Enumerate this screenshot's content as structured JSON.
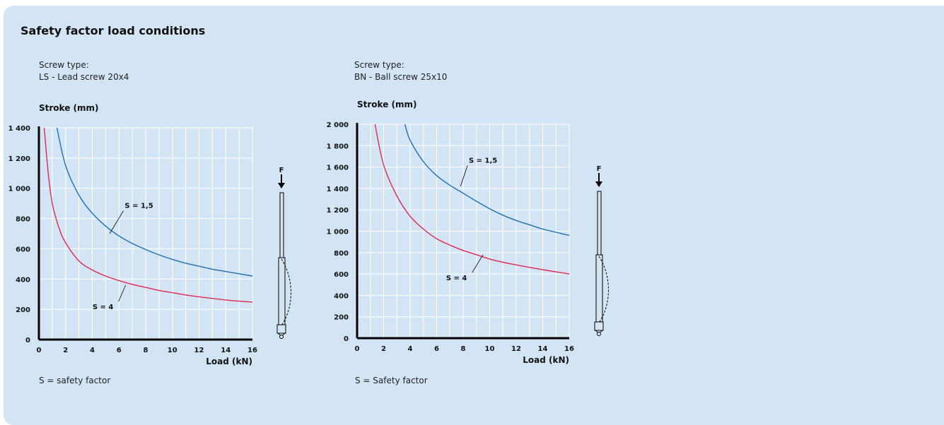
{
  "page": {
    "title": "Safety factor load conditions"
  },
  "charts": [
    {
      "screw_type_label": "Screw type:",
      "screw_type_value": "LS - Lead screw 20x4",
      "footnote": "S = safety factor"
    },
    {
      "screw_type_label": "Screw type:",
      "screw_type_value": "BN - Ball screw 25x10",
      "footnote": "S = Safety factor"
    }
  ],
  "figure": {
    "force_label": "F"
  },
  "colors": {
    "s15": "#1f6fb0",
    "s4": "#e0294e",
    "grid": "#ffffff",
    "axis": "#000000",
    "background": "#d3e5f5"
  },
  "chart_data": [
    {
      "type": "line",
      "ylabel": "Stroke (mm)",
      "xlabel": "Load (kN)",
      "xlim": [
        0,
        16
      ],
      "ylim": [
        0,
        1400
      ],
      "xticks": [
        0,
        2,
        4,
        6,
        8,
        10,
        12,
        14,
        16
      ],
      "yticks": [
        0,
        200,
        400,
        600,
        800,
        1000,
        1200,
        1400
      ],
      "ytick_labels": [
        "0",
        "200",
        "400",
        "600",
        "800",
        "1 000",
        "1 200",
        "1 400"
      ],
      "grid": true,
      "series": [
        {
          "name": "S = 1,5",
          "color": "#1f6fb0",
          "x": [
            1.35,
            2,
            3,
            4,
            5,
            6,
            7,
            8,
            9,
            10,
            11,
            12,
            13,
            14,
            15,
            16
          ],
          "y": [
            1400,
            1150,
            955,
            835,
            750,
            685,
            635,
            595,
            560,
            530,
            505,
            485,
            465,
            450,
            435,
            420
          ]
        },
        {
          "name": "S = 4",
          "color": "#e0294e",
          "x": [
            0.4,
            0.7,
            1,
            1.5,
            2,
            3,
            4,
            5,
            6,
            7,
            8,
            9,
            10,
            11,
            12,
            13,
            14,
            15,
            16
          ],
          "y": [
            1400,
            1100,
            900,
            740,
            640,
            520,
            460,
            420,
            390,
            365,
            345,
            325,
            310,
            295,
            283,
            272,
            262,
            254,
            248
          ]
        }
      ],
      "annotations": [
        {
          "text": "S = 1,5",
          "x": 7.5,
          "y": 870,
          "line_to": [
            5.3,
            700
          ]
        },
        {
          "text": "S = 4",
          "x": 4.8,
          "y": 200,
          "line_to": [
            6.5,
            360
          ]
        }
      ]
    },
    {
      "type": "line",
      "ylabel": "Stroke (mm)",
      "xlabel": "Load (kN)",
      "xlim": [
        0,
        16
      ],
      "ylim": [
        0,
        2000
      ],
      "xticks": [
        0,
        2,
        4,
        6,
        8,
        10,
        12,
        14,
        16
      ],
      "yticks": [
        0,
        200,
        400,
        600,
        800,
        1000,
        1200,
        1400,
        1600,
        1800,
        2000
      ],
      "ytick_labels": [
        "0",
        "200",
        "400",
        "600",
        "800",
        "1 000",
        "1 200",
        "1 400",
        "1 600",
        "1 800",
        "2 000"
      ],
      "grid": true,
      "series": [
        {
          "name": "S = 1,5",
          "color": "#1f6fb0",
          "x": [
            3.6,
            4,
            5,
            6,
            7,
            8,
            9,
            10,
            11,
            12,
            13,
            14,
            15,
            16
          ],
          "y": [
            2000,
            1850,
            1650,
            1520,
            1430,
            1355,
            1280,
            1210,
            1150,
            1100,
            1060,
            1020,
            990,
            960
          ]
        },
        {
          "name": "S = 4",
          "color": "#e0294e",
          "x": [
            1.35,
            2,
            3,
            4,
            5,
            6,
            7,
            8,
            9,
            10,
            11,
            12,
            13,
            14,
            15,
            16
          ],
          "y": [
            2000,
            1620,
            1330,
            1140,
            1020,
            930,
            870,
            820,
            780,
            740,
            710,
            685,
            662,
            640,
            620,
            600
          ]
        }
      ],
      "annotations": [
        {
          "text": "S = 1,5",
          "x": 9.5,
          "y": 1640,
          "line_to": [
            7.8,
            1420
          ]
        },
        {
          "text": "S = 4",
          "x": 7.5,
          "y": 540,
          "line_to": [
            9.5,
            780
          ]
        }
      ]
    }
  ]
}
